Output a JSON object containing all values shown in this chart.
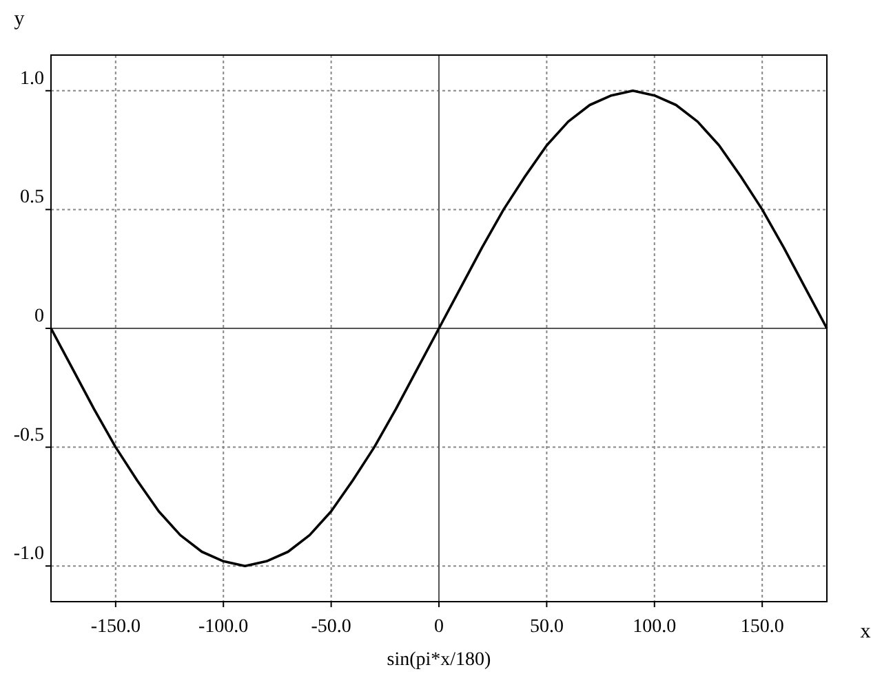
{
  "chart_data": {
    "type": "line",
    "xlabel": "x",
    "ylabel": "y",
    "annotations": [
      "sin(pi*x/180)"
    ],
    "x": [
      -180,
      -170,
      -160,
      -150,
      -140,
      -130,
      -120,
      -110,
      -100,
      -90,
      -80,
      -70,
      -60,
      -50,
      -40,
      -30,
      -20,
      -10,
      0,
      10,
      20,
      30,
      40,
      50,
      60,
      70,
      80,
      90,
      100,
      110,
      120,
      130,
      140,
      150,
      160,
      170,
      180
    ],
    "series": [
      {
        "color": "#000000",
        "values": [
          0,
          -0.17,
          -0.34,
          -0.5,
          -0.64,
          -0.77,
          -0.87,
          -0.94,
          -0.98,
          -1,
          -0.98,
          -0.94,
          -0.87,
          -0.77,
          -0.64,
          -0.5,
          -0.34,
          -0.17,
          0,
          0.17,
          0.34,
          0.5,
          0.64,
          0.77,
          0.87,
          0.94,
          0.98,
          1,
          0.98,
          0.94,
          0.87,
          0.77,
          0.64,
          0.5,
          0.34,
          0.17,
          0
        ]
      }
    ],
    "xlim": [
      -180,
      180
    ],
    "ylim": [
      -1.15,
      1.15
    ],
    "xticks": [
      {
        "value": -150,
        "label": "-150.0"
      },
      {
        "value": -100,
        "label": "-100.0"
      },
      {
        "value": -50,
        "label": "-50.0"
      },
      {
        "value": 0,
        "label": "0"
      },
      {
        "value": 50,
        "label": "50.0"
      },
      {
        "value": 100,
        "label": "100.0"
      },
      {
        "value": 150,
        "label": "150.0"
      }
    ],
    "yticks": [
      {
        "value": -1,
        "label": "-1.0"
      },
      {
        "value": -0.5,
        "label": "-0.5"
      },
      {
        "value": 0,
        "label": "0"
      },
      {
        "value": 0.5,
        "label": "0.5"
      },
      {
        "value": 1,
        "label": "1.0"
      }
    ],
    "grid": true,
    "marker": "none",
    "line_style": "solid"
  }
}
